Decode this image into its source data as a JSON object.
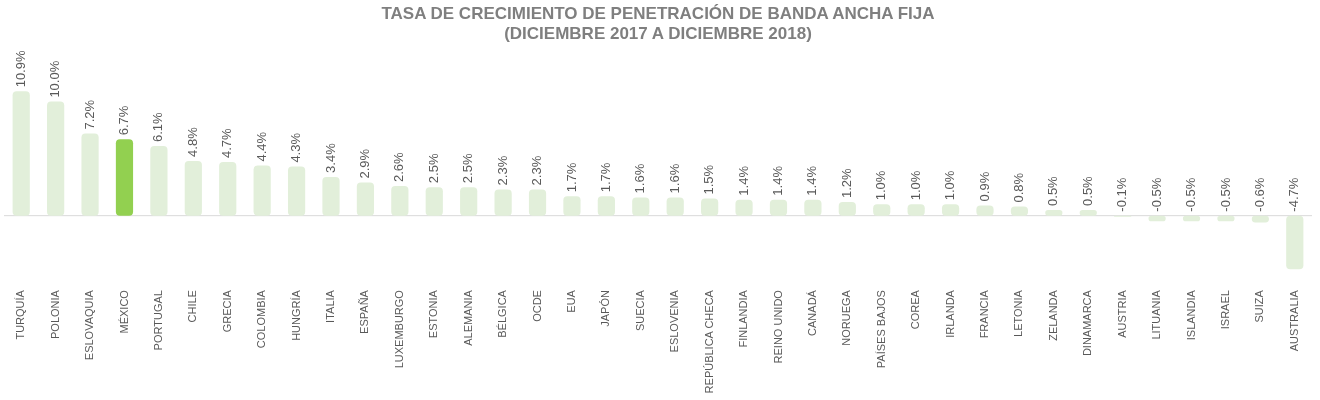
{
  "chart_data": {
    "type": "bar",
    "title": [
      "TASA DE CRECIMIENTO DE PENETRACIÓN DE BANDA ANCHA FIJA",
      "(DICIEMBRE 2017 A DICIEMBRE 2018)"
    ],
    "categories": [
      "TURQUÍA",
      "POLONIA",
      "ESLOVAQUIA",
      "MÉXICO",
      "PORTUGAL",
      "CHILE",
      "GRECIA",
      "COLOMBIA",
      "HUNGRÍA",
      "ITALIA",
      "ESPAÑA",
      "LUXEMBURGO",
      "ESTONIA",
      "ALEMANIA",
      "BÉLGICA",
      "OCDE",
      "EUA",
      "JAPÓN",
      "SUECIA",
      "ESLOVENIA",
      "REPÚBLICA CHECA",
      "FINLANDIA",
      "REINO UNIDO",
      "CANADÁ",
      "NORUEGA",
      "PAÍSES BAJOS",
      "COREA",
      "IRLANDA",
      "FRANCIA",
      "LETONIA",
      "ZELANDA",
      "DINAMARCA",
      "AUSTRIA",
      "LITUANIA",
      "ISLANDIA",
      "ISRAEL",
      "SUIZA",
      "AUSTRALIA"
    ],
    "values": [
      10.9,
      10.0,
      7.2,
      6.7,
      6.1,
      4.8,
      4.7,
      4.4,
      4.3,
      3.4,
      2.9,
      2.6,
      2.5,
      2.5,
      2.3,
      2.3,
      1.7,
      1.7,
      1.6,
      1.6,
      1.5,
      1.4,
      1.4,
      1.4,
      1.2,
      1.0,
      1.0,
      1.0,
      0.9,
      0.8,
      0.5,
      0.5,
      -0.1,
      -0.5,
      -0.5,
      -0.5,
      -0.6,
      -4.7
    ],
    "value_labels": [
      "10.9%",
      "10.0%",
      "7.2%",
      "6.7%",
      "6.1%",
      "4.8%",
      "4.7%",
      "4.4%",
      "4.3%",
      "3.4%",
      "2.9%",
      "2.6%",
      "2.5%",
      "2.5%",
      "2.3%",
      "2.3%",
      "1.7%",
      "1.7%",
      "1.6%",
      "1.6%",
      "1.5%",
      "1.4%",
      "1.4%",
      "1.4%",
      "1.2%",
      "1.0%",
      "1.0%",
      "1.0%",
      "0.9%",
      "0.8%",
      "0.5%",
      "0.5%",
      "-0.1%",
      "-0.5%",
      "-0.5%",
      "-0.5%",
      "-0.6%",
      "-4.7%"
    ],
    "colors": [
      "#e2efda",
      "#e2efda",
      "#e2efda",
      "#92d050",
      "#e2efda",
      "#e2efda",
      "#e2efda",
      "#e2efda",
      "#e2efda",
      "#e2efda",
      "#e2efda",
      "#e2efda",
      "#e2efda",
      "#e2efda",
      "#e2efda",
      "#e2efda",
      "#e2efda",
      "#e2efda",
      "#e2efda",
      "#e2efda",
      "#e2efda",
      "#e2efda",
      "#e2efda",
      "#e2efda",
      "#e2efda",
      "#e2efda",
      "#e2efda",
      "#e2efda",
      "#e2efda",
      "#e2efda",
      "#e2efda",
      "#e2efda",
      "#e2efda",
      "#e2efda",
      "#e2efda",
      "#e2efda",
      "#e2efda",
      "#e2efda"
    ],
    "grid": false,
    "legend": false
  }
}
